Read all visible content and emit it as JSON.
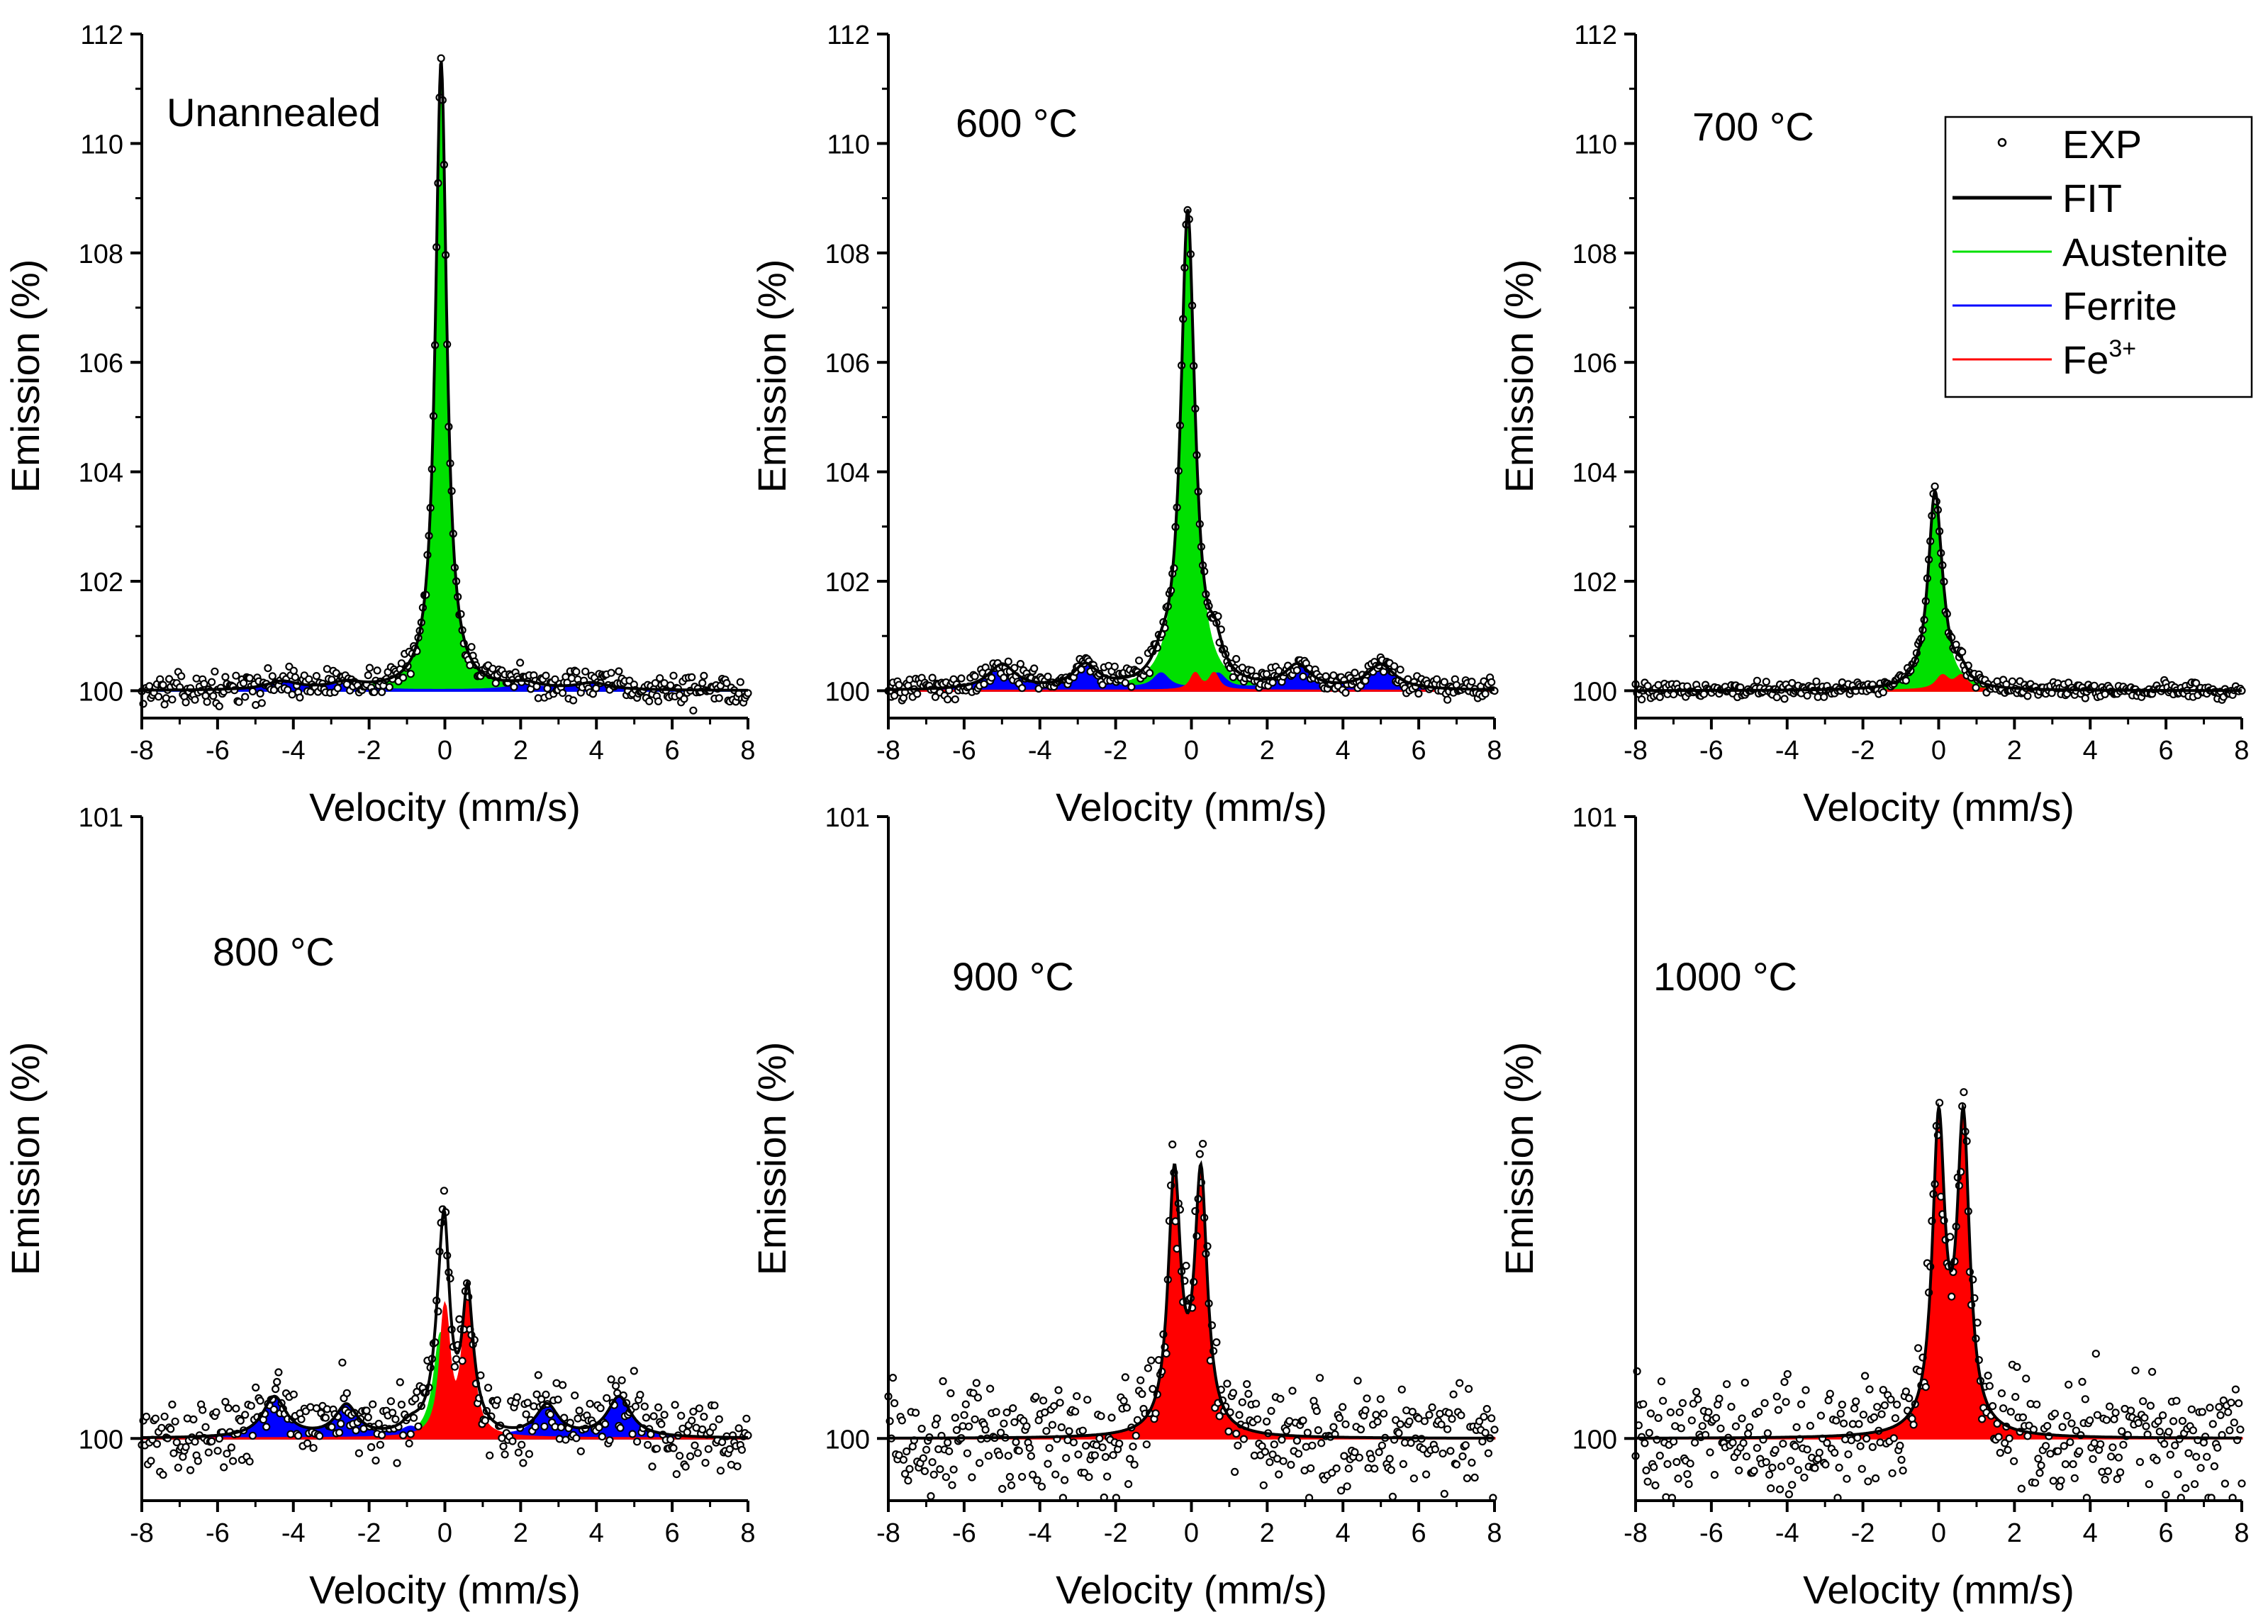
{
  "legend": {
    "items": [
      {
        "label": "EXP",
        "kind": "marker",
        "color": "#000000"
      },
      {
        "label": "FIT",
        "kind": "line",
        "color": "#000000"
      },
      {
        "label": "Austenite",
        "kind": "line",
        "color": "#00e000"
      },
      {
        "label": "Ferrite",
        "kind": "line",
        "color": "#0000ff"
      },
      {
        "label": "Fe",
        "sup": "3+",
        "kind": "line",
        "color": "#ff0000"
      }
    ]
  },
  "colors": {
    "austenite": "#00e000",
    "ferrite": "#0000ff",
    "fe3": "#ff0000",
    "fit": "#000000",
    "exp": "#000000"
  },
  "chart_data": [
    {
      "type": "area",
      "label": "Unannealed",
      "xlabel": "Velocity (mm/s)",
      "ylabel": "Emission (%)",
      "xlim": [
        -8,
        8
      ],
      "ylim": [
        99.5,
        112
      ],
      "x_ticks": [
        "-8",
        "-6",
        "-4",
        "-2",
        "0",
        "2",
        "4",
        "6",
        "8"
      ],
      "y_ticks": [
        "100",
        "102",
        "104",
        "106",
        "108",
        "110",
        "112"
      ],
      "components": [
        {
          "name": "Austenite",
          "lines": [
            {
              "x0": -0.1,
              "h": 11.5,
              "g": 0.18
            }
          ]
        },
        {
          "name": "Ferrite",
          "lines": [
            {
              "x0": -4.3,
              "h": 0.15,
              "g": 0.5
            },
            {
              "x0": -2.6,
              "h": 0.12,
              "g": 0.5
            },
            {
              "x0": 2.1,
              "h": 0.1,
              "g": 0.5
            },
            {
              "x0": 3.9,
              "h": 0.12,
              "g": 0.5
            }
          ]
        }
      ],
      "noise": 0.13
    },
    {
      "type": "area",
      "label": "600 °C",
      "xlabel": "Velocity (mm/s)",
      "ylabel": "Emission (%)",
      "xlim": [
        -8,
        8
      ],
      "ylim": [
        99.5,
        112
      ],
      "x_ticks": [
        "-8",
        "-6",
        "-4",
        "-2",
        "0",
        "2",
        "4",
        "6",
        "8"
      ],
      "y_ticks": [
        "100",
        "102",
        "104",
        "106",
        "108",
        "110",
        "112"
      ],
      "components": [
        {
          "name": "Austenite",
          "lines": [
            {
              "x0": -0.1,
              "h": 8.6,
              "g": 0.22
            }
          ]
        },
        {
          "name": "Ferrite",
          "lines": [
            {
              "x0": -5.0,
              "h": 0.45,
              "g": 0.45
            },
            {
              "x0": -2.8,
              "h": 0.42,
              "g": 0.4
            },
            {
              "x0": -0.8,
              "h": 0.28,
              "g": 0.25
            },
            {
              "x0": 0.7,
              "h": 0.28,
              "g": 0.25
            },
            {
              "x0": 2.8,
              "h": 0.42,
              "g": 0.4
            },
            {
              "x0": 5.0,
              "h": 0.45,
              "g": 0.45
            }
          ]
        },
        {
          "name": "Fe3+",
          "lines": [
            {
              "x0": 0.1,
              "h": 0.3,
              "g": 0.15
            },
            {
              "x0": 0.6,
              "h": 0.3,
              "g": 0.15
            }
          ]
        }
      ],
      "noise": 0.1
    },
    {
      "type": "area",
      "label": "700 °C",
      "xlabel": "Velocity (mm/s)",
      "ylabel": "Emission (%)",
      "xlim": [
        -8,
        8
      ],
      "ylim": [
        99.5,
        112
      ],
      "x_ticks": [
        "-8",
        "-6",
        "-4",
        "-2",
        "0",
        "2",
        "4",
        "6",
        "8"
      ],
      "y_ticks": [
        "100",
        "102",
        "104",
        "106",
        "108",
        "110",
        "112"
      ],
      "components": [
        {
          "name": "Austenite",
          "lines": [
            {
              "x0": -0.1,
              "h": 3.5,
              "g": 0.22
            }
          ]
        },
        {
          "name": "Fe3+",
          "lines": [
            {
              "x0": 0.1,
              "h": 0.25,
              "g": 0.2
            },
            {
              "x0": 0.6,
              "h": 0.25,
              "g": 0.2
            }
          ]
        }
      ],
      "noise": 0.07
    },
    {
      "type": "area",
      "label": "800 °C",
      "xlabel": "Velocity (mm/s)",
      "ylabel": "Emission (%)",
      "xlim": [
        -8,
        8
      ],
      "ylim": [
        99.9,
        101
      ],
      "x_ticks": [
        "-8",
        "-6",
        "-4",
        "-2",
        "0",
        "2",
        "4",
        "6",
        "8"
      ],
      "y_ticks": [
        "100",
        "101"
      ],
      "components": [
        {
          "name": "Austenite",
          "lines": [
            {
              "x0": -0.1,
              "h": 0.17,
              "g": 0.22
            }
          ]
        },
        {
          "name": "Ferrite",
          "lines": [
            {
              "x0": -4.5,
              "h": 0.065,
              "g": 0.38
            },
            {
              "x0": -2.6,
              "h": 0.05,
              "g": 0.35
            },
            {
              "x0": -0.9,
              "h": 0.015,
              "g": 0.3
            },
            {
              "x0": 0.8,
              "h": 0.015,
              "g": 0.3
            },
            {
              "x0": 2.7,
              "h": 0.05,
              "g": 0.35
            },
            {
              "x0": 4.6,
              "h": 0.065,
              "g": 0.38
            }
          ]
        },
        {
          "name": "Fe3+",
          "lines": [
            {
              "x0": 0.0,
              "h": 0.2,
              "g": 0.15
            },
            {
              "x0": 0.6,
              "h": 0.21,
              "g": 0.17
            }
          ]
        }
      ],
      "noise": 0.028
    },
    {
      "type": "area",
      "label": "900 °C",
      "xlabel": "Velocity (mm/s)",
      "ylabel": "Emission (%)",
      "xlim": [
        -8,
        8
      ],
      "ylim": [
        99.9,
        101
      ],
      "x_ticks": [
        "-8",
        "-6",
        "-4",
        "-2",
        "0",
        "2",
        "4",
        "6",
        "8"
      ],
      "y_ticks": [
        "100",
        "101"
      ],
      "components": [
        {
          "name": "Fe3+",
          "lines": [
            {
              "x0": -0.45,
              "h": 0.41,
              "g": 0.2
            },
            {
              "x0": 0.25,
              "h": 0.41,
              "g": 0.2
            }
          ]
        }
      ],
      "noise": 0.045
    },
    {
      "type": "area",
      "label": "1000 °C",
      "xlabel": "Velocity (mm/s)",
      "ylabel": "Emission (%)",
      "xlim": [
        -8,
        8
      ],
      "ylim": [
        99.9,
        101
      ],
      "x_ticks": [
        "-8",
        "-6",
        "-4",
        "-2",
        "0",
        "2",
        "4",
        "6",
        "8"
      ],
      "y_ticks": [
        "100",
        "101"
      ],
      "components": [
        {
          "name": "Fe3+",
          "lines": [
            {
              "x0": 0.0,
              "h": 0.49,
              "g": 0.2
            },
            {
              "x0": 0.65,
              "h": 0.49,
              "g": 0.2
            }
          ]
        }
      ],
      "noise": 0.048
    }
  ]
}
